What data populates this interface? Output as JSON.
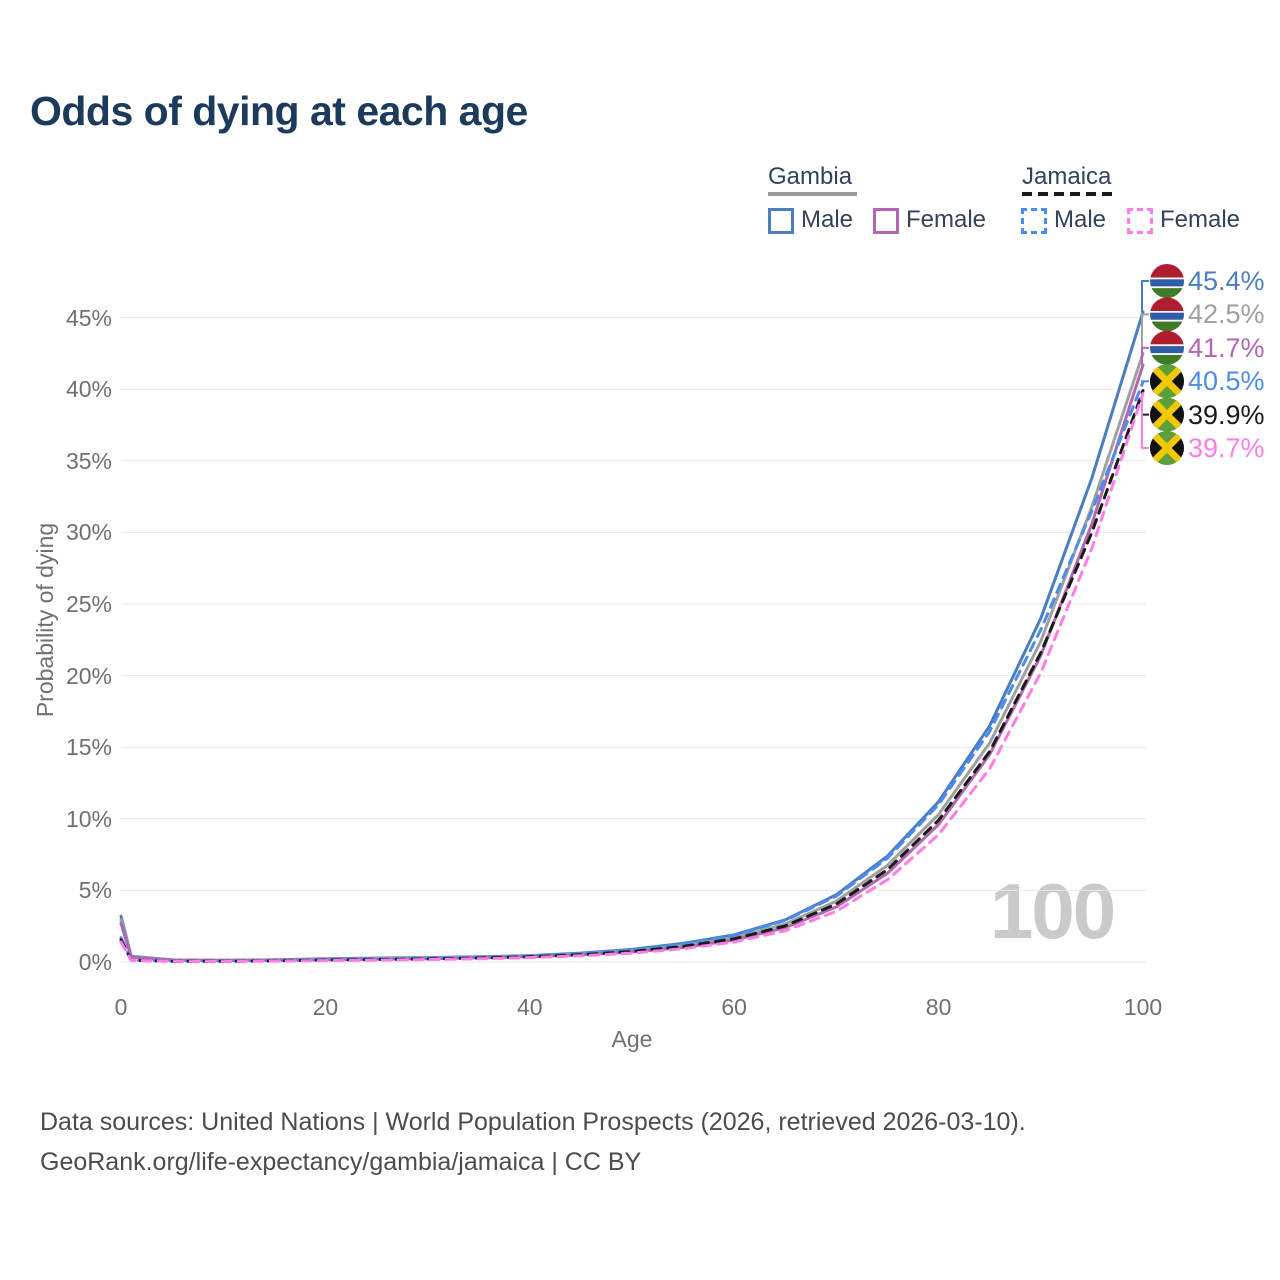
{
  "title": "Odds of dying at each age",
  "legend": {
    "groups": [
      {
        "label": "Gambia",
        "line_style": "solid",
        "underline_color": "#9b9b9b",
        "items": [
          {
            "label": "Male",
            "color": "#4a7ec0"
          },
          {
            "label": "Female",
            "color": "#b168b1"
          }
        ]
      },
      {
        "label": "Jamaica",
        "line_style": "dashed",
        "underline_color": "#1a1a1a",
        "items": [
          {
            "label": "Male",
            "color": "#4a8cf0"
          },
          {
            "label": "Female",
            "color": "#ff7de5"
          }
        ]
      }
    ]
  },
  "chart_data": {
    "type": "line",
    "title": "Odds of dying at each age",
    "xlabel": "Age",
    "ylabel": "Probability of dying",
    "xlim": [
      0,
      100
    ],
    "ylim": [
      0,
      47
    ],
    "grid": "horizontal",
    "legend_position": "top-right",
    "x_ticks": [
      "0",
      "20",
      "40",
      "60",
      "80",
      "100"
    ],
    "y_ticks": [
      "0%",
      "5%",
      "10%",
      "15%",
      "20%",
      "25%",
      "30%",
      "35%",
      "40%",
      "45%"
    ],
    "watermark": "100",
    "ages": [
      0,
      1,
      5,
      10,
      15,
      20,
      25,
      30,
      35,
      40,
      45,
      50,
      55,
      60,
      65,
      70,
      75,
      80,
      85,
      90,
      95,
      100
    ],
    "series": [
      {
        "name": "Gambia Male",
        "style": "solid",
        "color": "#4a7ec0",
        "flag": "gambia",
        "end_label": "45.4%",
        "values": [
          3.2,
          0.4,
          0.15,
          0.12,
          0.16,
          0.22,
          0.27,
          0.31,
          0.36,
          0.45,
          0.62,
          0.88,
          1.3,
          1.9,
          2.95,
          4.7,
          7.4,
          11.2,
          16.5,
          24.0,
          33.8,
          45.4
        ]
      },
      {
        "name": "Gambia Both sexes",
        "style": "solid",
        "color": "#a0a0a0",
        "flag": "gambia",
        "end_label": "42.5%",
        "values": [
          2.95,
          0.37,
          0.14,
          0.11,
          0.14,
          0.19,
          0.23,
          0.27,
          0.33,
          0.41,
          0.56,
          0.79,
          1.15,
          1.7,
          2.65,
          4.25,
          6.75,
          10.3,
          15.3,
          22.4,
          31.8,
          42.5
        ]
      },
      {
        "name": "Gambia Female",
        "style": "solid",
        "color": "#b168b1",
        "flag": "gambia",
        "end_label": "41.7%",
        "values": [
          2.7,
          0.34,
          0.13,
          0.1,
          0.12,
          0.16,
          0.19,
          0.23,
          0.29,
          0.37,
          0.51,
          0.7,
          1.02,
          1.52,
          2.4,
          3.85,
          6.2,
          9.6,
          14.5,
          21.4,
          30.6,
          41.7
        ]
      },
      {
        "name": "Jamaica Male",
        "style": "dashed",
        "color": "#4a8cf0",
        "flag": "jamaica",
        "end_label": "40.5%",
        "values": [
          1.7,
          0.13,
          0.06,
          0.06,
          0.09,
          0.16,
          0.21,
          0.26,
          0.32,
          0.42,
          0.58,
          0.84,
          1.25,
          1.85,
          2.9,
          4.6,
          7.25,
          11.0,
          16.1,
          23.2,
          31.5,
          40.5
        ]
      },
      {
        "name": "Jamaica Both sexes",
        "style": "dashed",
        "color": "#1a1a1a",
        "flag": "jamaica",
        "end_label": "39.9%",
        "values": [
          1.55,
          0.12,
          0.05,
          0.05,
          0.08,
          0.13,
          0.17,
          0.21,
          0.27,
          0.36,
          0.5,
          0.73,
          1.08,
          1.62,
          2.52,
          4.05,
          6.45,
          9.9,
          14.7,
          21.6,
          30.0,
          39.9
        ]
      },
      {
        "name": "Jamaica Female",
        "style": "dashed",
        "color": "#ff7de5",
        "flag": "jamaica",
        "end_label": "39.7%",
        "values": [
          1.4,
          0.11,
          0.05,
          0.04,
          0.06,
          0.1,
          0.13,
          0.17,
          0.22,
          0.31,
          0.43,
          0.62,
          0.93,
          1.4,
          2.18,
          3.55,
          5.75,
          8.9,
          13.5,
          20.2,
          28.9,
          39.7
        ]
      }
    ]
  },
  "footer": {
    "line1": "Data sources: United Nations | World Population Prospects (2026, retrieved 2026-03-10).",
    "line2": "GeoRank.org/life-expectancy/gambia/jamaica | CC BY"
  }
}
